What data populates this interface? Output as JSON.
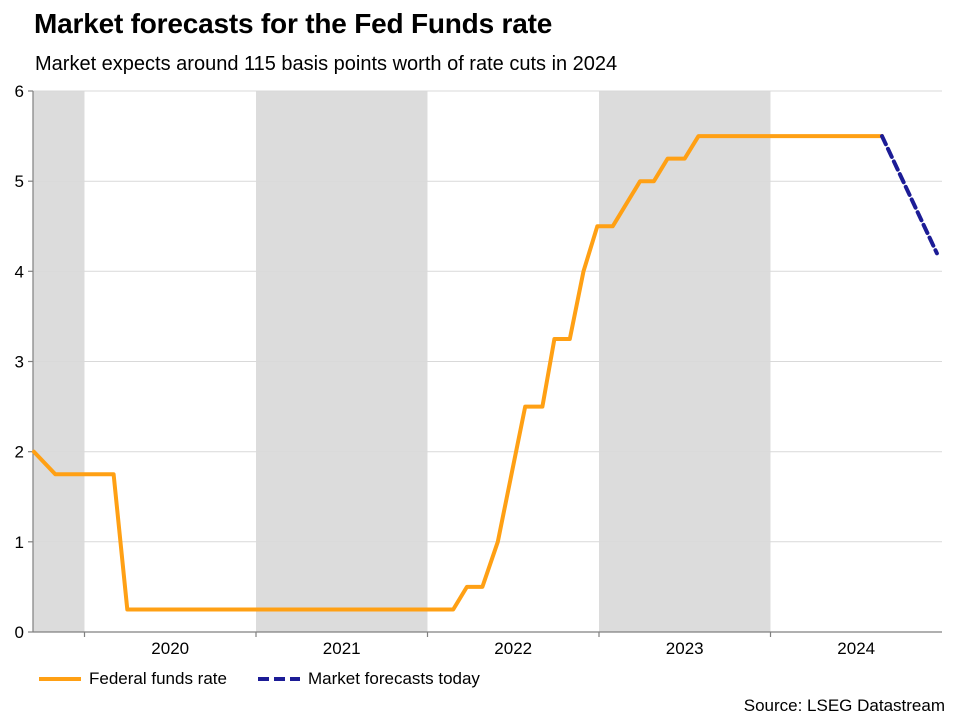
{
  "colors": {
    "fed_funds": "#FFA014",
    "forecast": "#1C1C96",
    "band": "#DCDCDC",
    "grid": "#D9D9D9",
    "axis": "#808080",
    "text": "#000000",
    "background": "#FFFFFF"
  },
  "chart_data": {
    "type": "line",
    "title": "Market forecasts for the Fed Funds rate",
    "subtitle": "Market expects around 115 basis points worth of rate cuts in 2024",
    "source": "Source: LSEG Datastream",
    "xlabel": "",
    "ylabel": "",
    "xlim": [
      2019.7,
      2025.0
    ],
    "ylim": [
      0,
      6
    ],
    "grid": "horizontal",
    "legend_position": "bottom-left",
    "yticks": [
      0,
      1,
      2,
      3,
      4,
      5,
      6
    ],
    "xticks": [
      {
        "boundary": 2020,
        "label": "2020"
      },
      {
        "boundary": 2021,
        "label": "2021"
      },
      {
        "boundary": 2022,
        "label": "2022"
      },
      {
        "boundary": 2023,
        "label": "2023"
      },
      {
        "boundary": 2024,
        "label": "2024"
      }
    ],
    "shaded_bands": [
      [
        2019.7,
        2020
      ],
      [
        2021,
        2022
      ],
      [
        2023,
        2024
      ]
    ],
    "series": [
      {
        "name": "Federal funds rate",
        "style": "solid",
        "color_key": "fed_funds",
        "points": [
          [
            2019.705,
            2.0
          ],
          [
            2019.83,
            1.75
          ],
          [
            2020.17,
            1.75
          ],
          [
            2020.25,
            0.25
          ],
          [
            2022.15,
            0.25
          ],
          [
            2022.23,
            0.5
          ],
          [
            2022.32,
            0.5
          ],
          [
            2022.41,
            1.0
          ],
          [
            2022.49,
            1.75
          ],
          [
            2022.57,
            2.5
          ],
          [
            2022.67,
            2.5
          ],
          [
            2022.74,
            3.25
          ],
          [
            2022.83,
            3.25
          ],
          [
            2022.91,
            4.0
          ],
          [
            2022.99,
            4.5
          ],
          [
            2023.08,
            4.5
          ],
          [
            2023.24,
            5.0
          ],
          [
            2023.32,
            5.0
          ],
          [
            2023.4,
            5.25
          ],
          [
            2023.5,
            5.25
          ],
          [
            2023.58,
            5.5
          ],
          [
            2024.65,
            5.5
          ]
        ]
      },
      {
        "name": "Market forecasts today",
        "style": "dashed",
        "color_key": "forecast",
        "points": [
          [
            2024.65,
            5.5
          ],
          [
            2024.97,
            4.2
          ]
        ]
      }
    ]
  }
}
